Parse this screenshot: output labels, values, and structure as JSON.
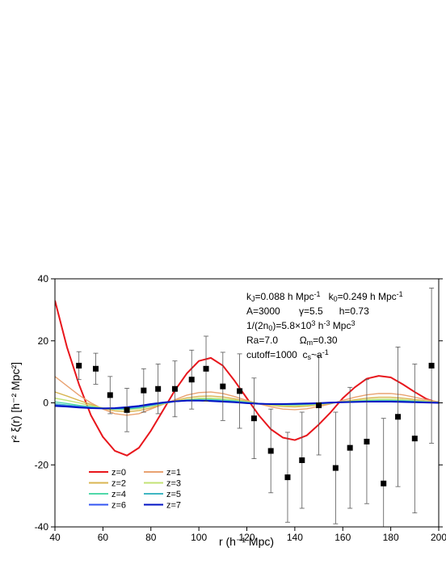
{
  "chart_data": {
    "type": "line",
    "xlabel": "r (h⁻¹ Mpc)",
    "ylabel": "r² ξ(r)   [h⁻² Mpc²]",
    "xlim": [
      40,
      200
    ],
    "ylim": [
      -40,
      40
    ],
    "xticks": [
      40,
      60,
      80,
      100,
      120,
      140,
      160,
      180,
      200
    ],
    "yticks": [
      -40,
      -20,
      0,
      20,
      40
    ],
    "x": [
      40,
      45,
      50,
      55,
      60,
      65,
      70,
      75,
      80,
      85,
      90,
      95,
      100,
      105,
      110,
      115,
      120,
      125,
      130,
      135,
      140,
      145,
      150,
      155,
      160,
      165,
      170,
      175,
      180,
      185,
      190,
      195,
      200
    ],
    "series": [
      {
        "name": "z=0",
        "color": "#e8161c",
        "values": [
          33,
          18,
          6,
          -4,
          -11,
          -15.5,
          -17,
          -14.5,
          -9,
          -2.5,
          4,
          9.5,
          13.5,
          14.5,
          12,
          7,
          1.5,
          -4,
          -8.5,
          -11.2,
          -12,
          -10.5,
          -7,
          -3,
          1.5,
          5,
          7.8,
          8.7,
          8.2,
          6,
          3.5,
          1.2,
          0
        ]
      },
      {
        "name": "z=1",
        "color": "#e9a271",
        "values": [
          8.5,
          5.5,
          2.5,
          0,
          -2,
          -3.5,
          -4,
          -3.5,
          -2,
          -0.5,
          1,
          2.5,
          3.3,
          3.5,
          3,
          2,
          0.8,
          -0.3,
          -1.3,
          -2,
          -2.2,
          -1.9,
          -1.2,
          -0.3,
          0.8,
          1.8,
          2.6,
          3,
          3,
          2.6,
          1.8,
          1,
          0.3
        ]
      },
      {
        "name": "z=2",
        "color": "#d9b552",
        "values": [
          3.5,
          2.2,
          0.8,
          -0.5,
          -1.8,
          -2.6,
          -2.9,
          -2.5,
          -1.6,
          -0.4,
          0.7,
          1.6,
          2.1,
          2.2,
          1.9,
          1.3,
          0.5,
          -0.2,
          -0.8,
          -1.2,
          -1.3,
          -1.1,
          -0.7,
          -0.2,
          0.4,
          1,
          1.5,
          1.8,
          1.8,
          1.5,
          1.1,
          0.6,
          0.2
        ]
      },
      {
        "name": "z=3",
        "color": "#c3e274",
        "values": [
          1.5,
          0.8,
          0,
          -0.9,
          -1.6,
          -2.1,
          -2.2,
          -1.9,
          -1.1,
          -0.3,
          0.5,
          1.1,
          1.5,
          1.5,
          1.3,
          0.9,
          0.3,
          -0.2,
          -0.6,
          -0.8,
          -0.9,
          -0.8,
          -0.5,
          -0.1,
          0.3,
          0.7,
          1,
          1.2,
          1.2,
          1,
          0.7,
          0.4,
          0.1
        ]
      },
      {
        "name": "z=4",
        "color": "#4fd8a9",
        "values": [
          0.3,
          -0.2,
          -0.8,
          -1.3,
          -1.8,
          -2,
          -2,
          -1.6,
          -0.9,
          -0.2,
          0.4,
          0.9,
          1.1,
          1.1,
          0.9,
          0.6,
          0.2,
          -0.2,
          -0.5,
          -0.6,
          -0.6,
          -0.5,
          -0.3,
          0,
          0.3,
          0.5,
          0.7,
          0.8,
          0.8,
          0.7,
          0.5,
          0.3,
          0.1
        ]
      },
      {
        "name": "z=5",
        "color": "#3fb6c2",
        "values": [
          -0.3,
          -0.7,
          -1.1,
          -1.5,
          -1.8,
          -1.9,
          -1.8,
          -1.4,
          -0.8,
          -0.1,
          0.4,
          0.8,
          0.9,
          0.9,
          0.7,
          0.4,
          0.1,
          -0.2,
          -0.4,
          -0.5,
          -0.5,
          -0.4,
          -0.2,
          0,
          0.2,
          0.4,
          0.5,
          0.6,
          0.6,
          0.5,
          0.4,
          0.2,
          0.1
        ]
      },
      {
        "name": "z=6",
        "color": "#3355f2",
        "values": [
          -0.7,
          -1,
          -1.3,
          -1.6,
          -1.8,
          -1.8,
          -1.6,
          -1.2,
          -0.6,
          0,
          0.4,
          0.7,
          0.8,
          0.7,
          0.5,
          0.3,
          0,
          -0.2,
          -0.4,
          -0.4,
          -0.4,
          -0.3,
          -0.2,
          0,
          0.2,
          0.3,
          0.4,
          0.5,
          0.5,
          0.4,
          0.3,
          0.2,
          0.1
        ]
      },
      {
        "name": "z=7",
        "color": "#0012c4",
        "values": [
          -1,
          -1.2,
          -1.5,
          -1.7,
          -1.8,
          -1.7,
          -1.4,
          -1,
          -0.4,
          0.1,
          0.5,
          0.7,
          0.7,
          0.6,
          0.4,
          0.2,
          -0.1,
          -0.3,
          -0.4,
          -0.4,
          -0.3,
          -0.2,
          -0.1,
          0.1,
          0.2,
          0.3,
          0.4,
          0.4,
          0.4,
          0.3,
          0.2,
          0.1,
          0
        ]
      }
    ],
    "observations": {
      "color": "#000000",
      "x": [
        50,
        57,
        63,
        70,
        77,
        83,
        90,
        97,
        103,
        110,
        117,
        123,
        130,
        137,
        143,
        150,
        157,
        163,
        170,
        177,
        183,
        190,
        197
      ],
      "values": [
        12,
        11,
        2.5,
        -2.3,
        4,
        4.5,
        4.5,
        7.5,
        11,
        5.3,
        3.8,
        -5,
        -15.5,
        -24,
        -18.5,
        -0.8,
        -21,
        -14.5,
        -12.5,
        -26,
        -4.5,
        -11.5,
        12
      ],
      "errors": [
        4.5,
        5,
        6,
        7,
        7,
        8,
        9,
        9.5,
        10.5,
        11,
        12,
        13,
        13.5,
        14.5,
        15.5,
        16,
        18,
        19.5,
        20,
        21,
        22.5,
        24,
        25
      ]
    },
    "annotations": [
      [
        "k",
        {
          "t": "J",
          "pos": "sub"
        },
        "=0.088 h Mpc",
        {
          "t": "-1",
          "pos": "sup"
        },
        "   k",
        {
          "t": "0",
          "pos": "sub"
        },
        "=0.249 h Mpc",
        {
          "t": "-1",
          "pos": "sup"
        }
      ],
      [
        "A=3000       γ=5.5      h=0.73"
      ],
      [
        "1/(2n",
        {
          "t": "0",
          "pos": "sub"
        },
        ")=5.8×10",
        {
          "t": "3",
          "pos": "sup"
        },
        " h",
        {
          "t": "-3",
          "pos": "sup"
        },
        " Mpc",
        {
          "t": "3",
          "pos": "sup"
        }
      ],
      [
        "Ra=7.0        Ω",
        {
          "t": "m",
          "pos": "sub"
        },
        "=0.30"
      ],
      [
        "cutoff=1000  c",
        {
          "t": "s",
          "pos": "sub"
        },
        "~a",
        {
          "t": "-1",
          "pos": "sup"
        }
      ]
    ]
  }
}
